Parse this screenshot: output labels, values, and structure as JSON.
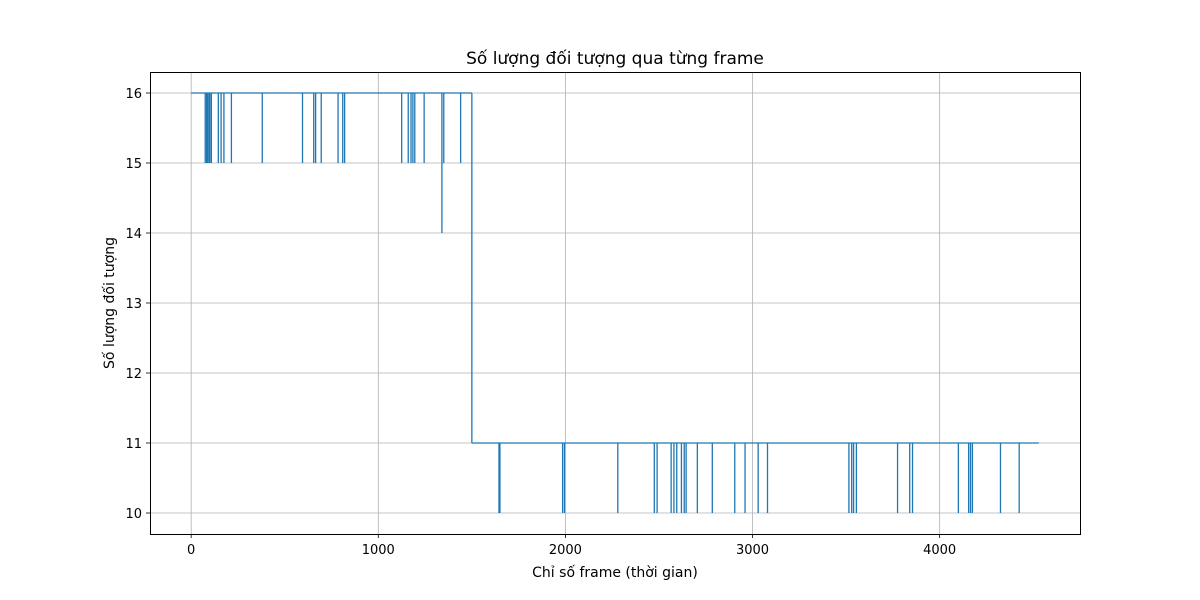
{
  "chart_data": {
    "type": "line",
    "title": "Số lượng đối tượng qua từng frame",
    "xlabel": "Chỉ số frame (thời gian)",
    "ylabel": "Số lượng đối tượng",
    "xlim": [
      -220,
      4750
    ],
    "ylim": [
      9.7,
      16.3
    ],
    "xticks": [
      0,
      1000,
      2000,
      3000,
      4000
    ],
    "yticks": [
      10,
      11,
      12,
      13,
      14,
      15,
      16
    ],
    "grid": true,
    "series": [
      {
        "color": "#1f77b4",
        "base_segments": [
          {
            "x_start": 0,
            "x_end": 1500,
            "value": 16
          },
          {
            "x_start": 1500,
            "x_end": 4530,
            "value": 11
          }
        ],
        "dips": [
          {
            "x": 75,
            "value": 15
          },
          {
            "x": 82,
            "value": 15
          },
          {
            "x": 88,
            "value": 15
          },
          {
            "x": 95,
            "value": 15
          },
          {
            "x": 100,
            "value": 15
          },
          {
            "x": 108,
            "value": 15
          },
          {
            "x": 145,
            "value": 15
          },
          {
            "x": 160,
            "value": 15
          },
          {
            "x": 175,
            "value": 15
          },
          {
            "x": 215,
            "value": 15
          },
          {
            "x": 380,
            "value": 15
          },
          {
            "x": 595,
            "value": 15
          },
          {
            "x": 655,
            "value": 15
          },
          {
            "x": 665,
            "value": 15
          },
          {
            "x": 695,
            "value": 15
          },
          {
            "x": 785,
            "value": 15
          },
          {
            "x": 810,
            "value": 15
          },
          {
            "x": 820,
            "value": 15
          },
          {
            "x": 1125,
            "value": 15
          },
          {
            "x": 1160,
            "value": 15
          },
          {
            "x": 1175,
            "value": 15
          },
          {
            "x": 1185,
            "value": 15
          },
          {
            "x": 1195,
            "value": 15
          },
          {
            "x": 1245,
            "value": 15
          },
          {
            "x": 1340,
            "value": 14
          },
          {
            "x": 1350,
            "value": 15
          },
          {
            "x": 1440,
            "value": 15
          },
          {
            "x": 1645,
            "value": 10
          },
          {
            "x": 1650,
            "value": 10
          },
          {
            "x": 1985,
            "value": 10
          },
          {
            "x": 1995,
            "value": 10
          },
          {
            "x": 2280,
            "value": 10
          },
          {
            "x": 2475,
            "value": 10
          },
          {
            "x": 2490,
            "value": 10
          },
          {
            "x": 2565,
            "value": 10
          },
          {
            "x": 2580,
            "value": 10
          },
          {
            "x": 2595,
            "value": 10
          },
          {
            "x": 2620,
            "value": 10
          },
          {
            "x": 2635,
            "value": 10
          },
          {
            "x": 2645,
            "value": 10
          },
          {
            "x": 2705,
            "value": 10
          },
          {
            "x": 2785,
            "value": 10
          },
          {
            "x": 2905,
            "value": 10
          },
          {
            "x": 2960,
            "value": 10
          },
          {
            "x": 3030,
            "value": 10
          },
          {
            "x": 3080,
            "value": 10
          },
          {
            "x": 3515,
            "value": 10
          },
          {
            "x": 3530,
            "value": 10
          },
          {
            "x": 3540,
            "value": 10
          },
          {
            "x": 3555,
            "value": 10
          },
          {
            "x": 3775,
            "value": 10
          },
          {
            "x": 3840,
            "value": 10
          },
          {
            "x": 3855,
            "value": 10
          },
          {
            "x": 4100,
            "value": 10
          },
          {
            "x": 4155,
            "value": 10
          },
          {
            "x": 4165,
            "value": 10
          },
          {
            "x": 4175,
            "value": 10
          },
          {
            "x": 4325,
            "value": 10
          },
          {
            "x": 4425,
            "value": 10
          }
        ]
      }
    ]
  }
}
